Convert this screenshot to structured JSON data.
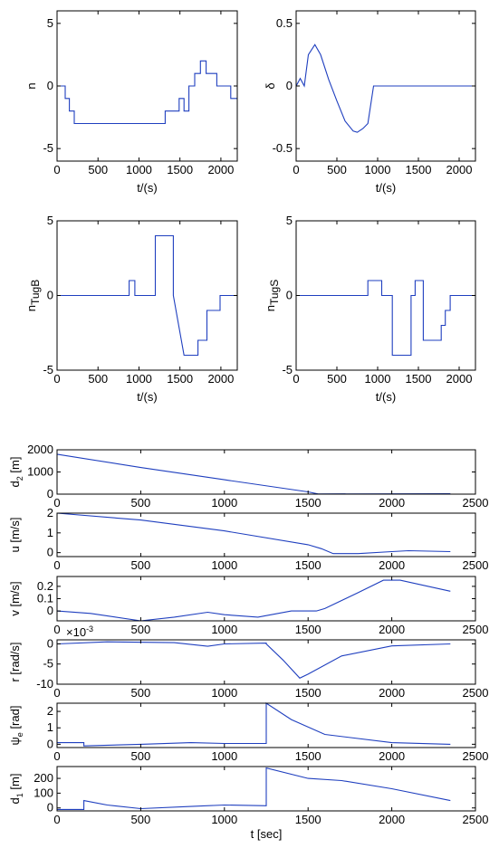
{
  "chart_data": [
    {
      "type": "line",
      "ylabel": "n",
      "xlabel": "t/(s)",
      "color": "#1f3fbf",
      "x": [
        0,
        100,
        100,
        150,
        150,
        210,
        210,
        1320,
        1320,
        1490,
        1490,
        1550,
        1550,
        1610,
        1610,
        1680,
        1680,
        1750,
        1750,
        1820,
        1820,
        1950,
        1950,
        2120,
        2120,
        2200
      ],
      "values": [
        0,
        0,
        -1,
        -1,
        -2,
        -2,
        -3,
        -3,
        -2,
        -2,
        -1,
        -1,
        -2,
        -2,
        0,
        0,
        1,
        1,
        2,
        2,
        1,
        1,
        0,
        0,
        -1,
        -1
      ],
      "xlim": [
        0,
        2200
      ],
      "xticks": [
        0,
        500,
        1000,
        1500,
        2000
      ],
      "ylim": [
        -6,
        6
      ],
      "yticks": [
        -5,
        0,
        5
      ]
    },
    {
      "type": "line",
      "ylabel": "δ",
      "xlabel": "t/(s)",
      "color": "#1f3fbf",
      "x": [
        0,
        50,
        100,
        150,
        230,
        300,
        400,
        500,
        600,
        700,
        750,
        820,
        880,
        950,
        2200
      ],
      "values": [
        0,
        0.06,
        0,
        0.25,
        0.33,
        0.25,
        0.05,
        -0.12,
        -0.28,
        -0.36,
        -0.37,
        -0.34,
        -0.3,
        0,
        0
      ],
      "xlim": [
        0,
        2200
      ],
      "xticks": [
        0,
        500,
        1000,
        1500,
        2000
      ],
      "ylim": [
        -0.6,
        0.6
      ],
      "yticks": [
        -0.5,
        0,
        0.5
      ]
    },
    {
      "type": "line",
      "ylabel": "n",
      "ylabel_sub": "TugB",
      "xlabel": "t/(s)",
      "color": "#1f3fbf",
      "x": [
        0,
        880,
        880,
        950,
        950,
        1200,
        1200,
        1420,
        1420,
        1550,
        1720,
        1720,
        1830,
        1830,
        1990,
        1990,
        2200
      ],
      "values": [
        0,
        0,
        1,
        1,
        0,
        0,
        4,
        4,
        0,
        -4,
        -4,
        -3,
        -3,
        -1,
        -1,
        0,
        0
      ],
      "xlim": [
        0,
        2200
      ],
      "xticks": [
        0,
        500,
        1000,
        1500,
        2000
      ],
      "ylim": [
        -5,
        5
      ],
      "yticks": [
        -5,
        0,
        5
      ]
    },
    {
      "type": "line",
      "ylabel": "n",
      "ylabel_sub": "TugS",
      "xlabel": "t/(s)",
      "color": "#1f3fbf",
      "x": [
        0,
        880,
        880,
        1050,
        1050,
        1180,
        1180,
        1410,
        1410,
        1460,
        1460,
        1560,
        1560,
        1780,
        1780,
        1830,
        1830,
        1890,
        1890,
        2200
      ],
      "values": [
        0,
        0,
        1,
        1,
        0,
        0,
        -4,
        -4,
        0,
        0,
        1,
        1,
        -3,
        -3,
        -2,
        -2,
        -1,
        -1,
        0,
        0
      ],
      "xlim": [
        0,
        2200
      ],
      "xticks": [
        0,
        500,
        1000,
        1500,
        2000
      ],
      "ylim": [
        -5,
        5
      ],
      "yticks": [
        -5,
        0,
        5
      ]
    },
    {
      "type": "line",
      "ylabel": "d",
      "ylabel_sub": "2",
      "ylabel_unit": " [m]",
      "color": "#1f3fbf",
      "x": [
        0,
        500,
        1000,
        1500,
        1560,
        2350
      ],
      "values": [
        1800,
        1200,
        650,
        100,
        10,
        20
      ],
      "xlim": [
        0,
        2500
      ],
      "xticks": [
        0,
        500,
        1000,
        1500,
        2000,
        2500
      ],
      "ylim": [
        0,
        2000
      ],
      "yticks": [
        0,
        1000,
        2000
      ]
    },
    {
      "type": "line",
      "ylabel": "u [m/s]",
      "color": "#1f3fbf",
      "x": [
        0,
        500,
        1000,
        1500,
        1580,
        1650,
        1800,
        2000,
        2100,
        2350
      ],
      "values": [
        2,
        1.65,
        1.1,
        0.4,
        0.2,
        -0.05,
        -0.05,
        0.05,
        0.1,
        0.05
      ],
      "xlim": [
        0,
        2500
      ],
      "xticks": [
        0,
        500,
        1000,
        1500,
        2000,
        2500
      ],
      "ylim": [
        -0.2,
        2
      ],
      "yticks": [
        0,
        1,
        2
      ]
    },
    {
      "type": "line",
      "ylabel": "v [m/s]",
      "color": "#1f3fbf",
      "x": [
        0,
        200,
        500,
        700,
        900,
        1000,
        1200,
        1400,
        1550,
        1600,
        1800,
        1950,
        2050,
        2350
      ],
      "values": [
        0,
        -0.02,
        -0.08,
        -0.05,
        -0.01,
        -0.03,
        -0.05,
        0,
        0,
        0.02,
        0.15,
        0.25,
        0.25,
        0.16
      ],
      "xlim": [
        0,
        2500
      ],
      "xticks": [
        0,
        500,
        1000,
        1500,
        2000,
        2500
      ],
      "ylim": [
        -0.08,
        0.28
      ],
      "yticks": [
        0,
        0.1,
        0.2
      ]
    },
    {
      "type": "line",
      "ylabel": "r [rad/s]",
      "scale_base": "×10",
      "scale_exp": "-3",
      "color": "#1f3fbf",
      "x": [
        0,
        300,
        700,
        900,
        1000,
        1250,
        1250,
        1350,
        1450,
        1500,
        1700,
        2000,
        2350
      ],
      "values": [
        0,
        0.5,
        0.3,
        -0.6,
        0,
        0.2,
        0,
        -4,
        -8.5,
        -7.5,
        -3,
        -0.5,
        0
      ],
      "xlim": [
        0,
        2500
      ],
      "xticks": [
        0,
        500,
        1000,
        1500,
        2000,
        2500
      ],
      "ylim": [
        -10,
        1
      ],
      "yticks": [
        -10,
        -5,
        0
      ]
    },
    {
      "type": "line",
      "ylabel": "ψ",
      "ylabel_sub": "e",
      "ylabel_unit": " [rad]",
      "color": "#1f3fbf",
      "x": [
        0,
        160,
        160,
        500,
        800,
        1000,
        1250,
        1250,
        1400,
        1600,
        2000,
        2350
      ],
      "values": [
        0.1,
        0.1,
        -0.1,
        0,
        0.1,
        0.05,
        0.05,
        2.5,
        1.5,
        0.6,
        0.1,
        0
      ],
      "xlim": [
        0,
        2500
      ],
      "xticks": [
        0,
        500,
        1000,
        1500,
        2000,
        2500
      ],
      "ylim": [
        -0.2,
        2.5
      ],
      "yticks": [
        0,
        1,
        2
      ]
    },
    {
      "type": "line",
      "ylabel": "d",
      "ylabel_sub": "1",
      "ylabel_unit": " [m]",
      "xlabel": "t [sec]",
      "color": "#1f3fbf",
      "x": [
        0,
        160,
        160,
        300,
        500,
        800,
        1000,
        1250,
        1250,
        1500,
        1700,
        2000,
        2350
      ],
      "values": [
        -10,
        -10,
        50,
        20,
        -5,
        10,
        20,
        15,
        270,
        200,
        185,
        130,
        50
      ],
      "xlim": [
        0,
        2500
      ],
      "xticks": [
        0,
        500,
        1000,
        1500,
        2000,
        2500
      ],
      "ylim": [
        -20,
        280
      ],
      "yticks": [
        0,
        100,
        200
      ]
    }
  ]
}
